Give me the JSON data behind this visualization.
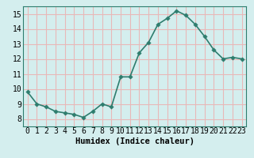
{
  "x": [
    0,
    1,
    2,
    3,
    4,
    5,
    6,
    7,
    8,
    9,
    10,
    11,
    12,
    13,
    14,
    15,
    16,
    17,
    18,
    19,
    20,
    21,
    22,
    23
  ],
  "y": [
    9.8,
    9.0,
    8.8,
    8.5,
    8.4,
    8.3,
    8.1,
    8.5,
    9.0,
    8.8,
    10.8,
    10.8,
    12.4,
    13.1,
    14.3,
    14.7,
    15.2,
    14.9,
    14.3,
    13.5,
    12.6,
    12.0,
    12.1,
    12.0
  ],
  "line_color": "#2e7d6e",
  "marker_color": "#2e7d6e",
  "bg_color": "#d4eeee",
  "grid_color_major": "#f0c8c8",
  "grid_color_minor": "#e8d8d8",
  "xlabel": "Humidex (Indice chaleur)",
  "xlim": [
    -0.5,
    23.5
  ],
  "ylim": [
    7.5,
    15.5
  ],
  "yticks": [
    8,
    9,
    10,
    11,
    12,
    13,
    14,
    15
  ],
  "xticks": [
    0,
    1,
    2,
    3,
    4,
    5,
    6,
    7,
    8,
    9,
    10,
    11,
    12,
    13,
    14,
    15,
    16,
    17,
    18,
    19,
    20,
    21,
    22,
    23
  ],
  "xlabel_fontsize": 7.5,
  "tick_fontsize": 7.0,
  "linewidth": 1.2,
  "markersize": 2.8,
  "spine_color": "#2e7d6e"
}
